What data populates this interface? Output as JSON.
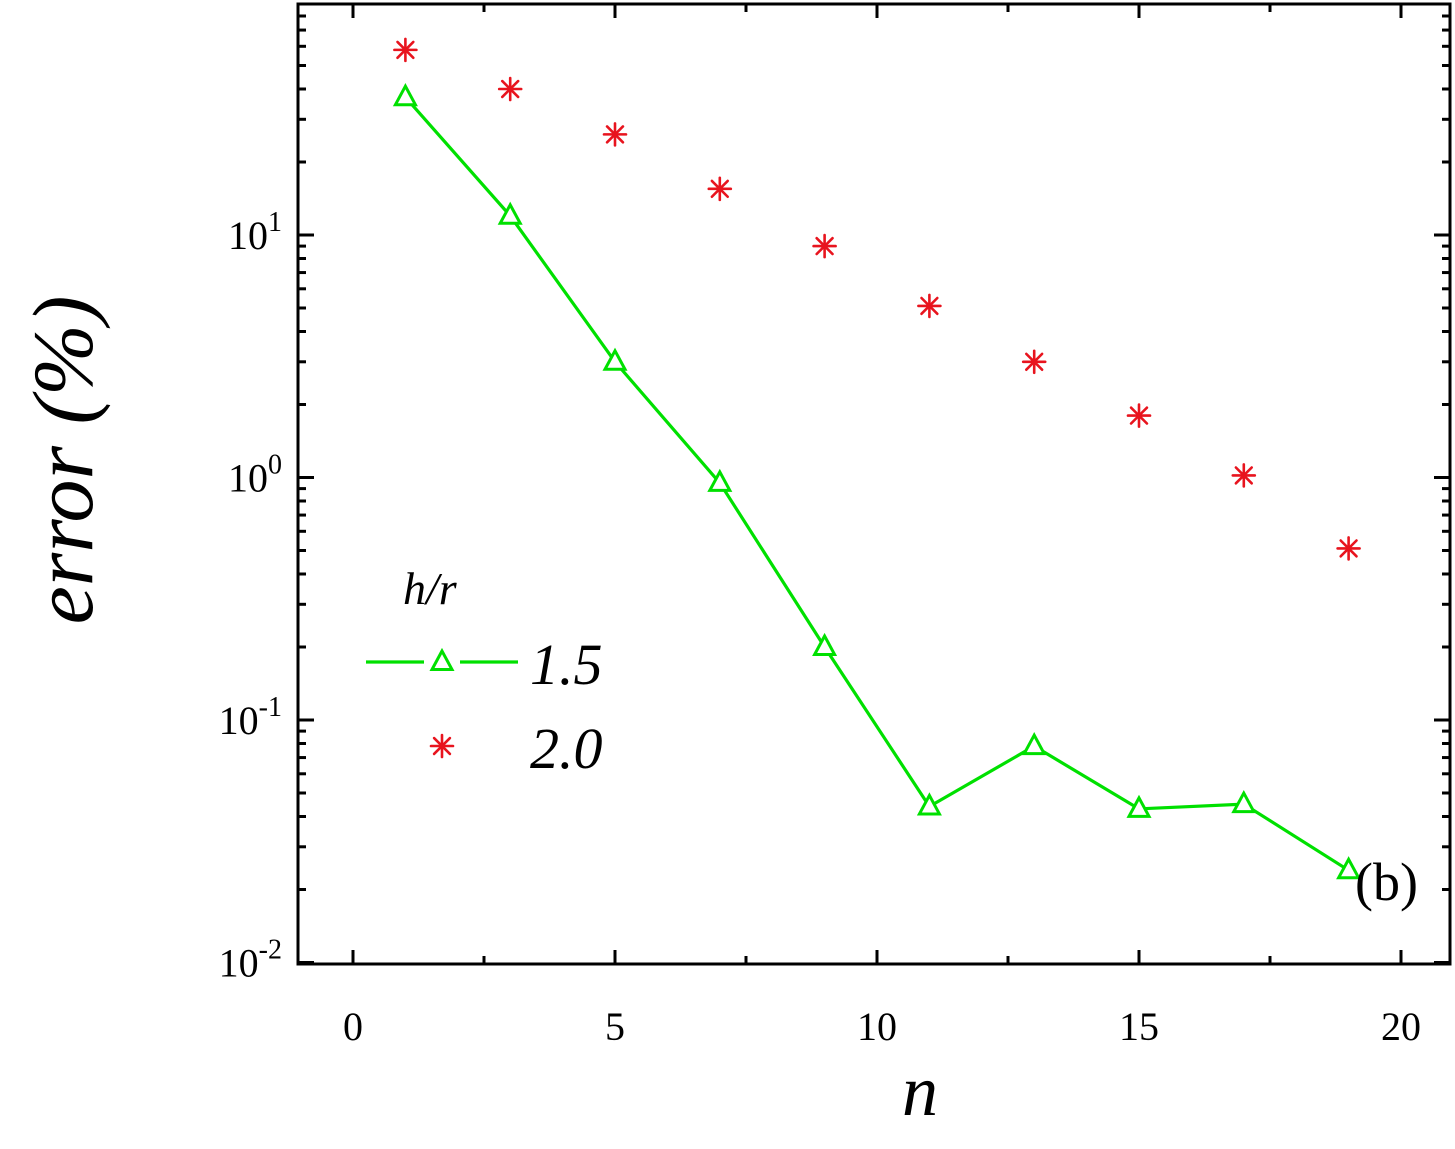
{
  "chart_data": {
    "type": "line",
    "xlabel": "n",
    "ylabel": "error (%)",
    "xlim": [
      -1,
      21
    ],
    "ylim": [
      0.01,
      80
    ],
    "yscale": "log",
    "xticks": [
      0,
      5,
      10,
      15,
      20
    ],
    "xtick_labels": [
      "0",
      "5",
      "10",
      "15",
      "20"
    ],
    "yticks": [
      {
        "value": 10,
        "base": "10",
        "exp": "1"
      },
      {
        "value": 1,
        "base": "10",
        "exp": "0"
      },
      {
        "value": 0.1,
        "base": "10",
        "exp": "-1"
      },
      {
        "value": 0.01,
        "base": "10",
        "exp": "-2"
      }
    ],
    "legend_title": "h/r",
    "legend_position": "center-left",
    "panel_label": "(b)",
    "series": [
      {
        "name": "1.5",
        "marker": "triangle",
        "line": true,
        "color": "#00e000",
        "x": [
          1,
          3,
          5,
          7,
          9,
          11,
          13,
          15,
          17,
          19
        ],
        "y": [
          37,
          12,
          3.0,
          0.95,
          0.2,
          0.044,
          0.078,
          0.043,
          0.045,
          0.024
        ]
      },
      {
        "name": "2.0",
        "marker": "asterisk",
        "line": false,
        "color": "#e8141e",
        "x": [
          1,
          3,
          5,
          7,
          9,
          11,
          13,
          15,
          17,
          19
        ],
        "y": [
          58,
          40,
          26,
          15.5,
          9.0,
          5.1,
          3.0,
          1.8,
          1.02,
          0.51
        ]
      }
    ]
  }
}
